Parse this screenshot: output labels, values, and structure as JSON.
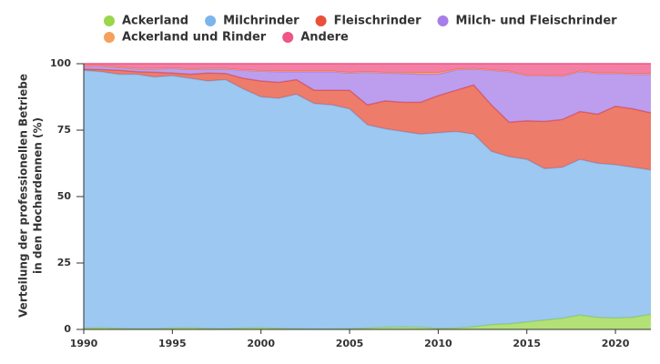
{
  "chart_data": {
    "type": "stacked_area",
    "ylabel": [
      "Verteilung der professionellen Betriebe",
      "in den Hochardennen (%)"
    ],
    "x": [
      1990,
      1991,
      1992,
      1993,
      1994,
      1995,
      1996,
      1997,
      1998,
      1999,
      2000,
      2001,
      2002,
      2003,
      2004,
      2005,
      2006,
      2007,
      2008,
      2009,
      2010,
      2011,
      2012,
      2013,
      2014,
      2015,
      2016,
      2017,
      2018,
      2019,
      2020,
      2021,
      2022
    ],
    "xlim": [
      1990,
      2022
    ],
    "xticks": [
      1990,
      1995,
      2000,
      2005,
      2010,
      2015,
      2020
    ],
    "ylim": [
      0,
      100
    ],
    "yticks": [
      0,
      25,
      50,
      75,
      100
    ],
    "series": [
      {
        "name": "Ackerland",
        "color": "#9bd64b",
        "values": [
          0.5,
          0.6,
          0.4,
          0.3,
          0.3,
          0.5,
          0.6,
          0.4,
          0.3,
          0.5,
          0.6,
          0.4,
          0.3,
          0.2,
          0.2,
          0.3,
          0.5,
          0.8,
          0.9,
          0.8,
          0.4,
          0.5,
          1,
          1.8,
          2.1,
          2.8,
          3.5,
          4.2,
          5.4,
          4.5,
          4.3,
          4.6,
          5.7
        ]
      },
      {
        "name": "Milchrinder",
        "color": "#7cb5ec",
        "values": [
          97,
          96.4,
          95.6,
          95.7,
          94.7,
          95,
          93.9,
          93.1,
          93.7,
          90,
          86.9,
          86.6,
          88.2,
          84.8,
          84.3,
          82.7,
          76.5,
          74.7,
          73.6,
          72.7,
          73.6,
          74,
          72.5,
          65.2,
          62.9,
          61.2,
          57,
          56.8,
          58.6,
          58,
          57.7,
          56.4,
          54.3
        ]
      },
      {
        "name": "Fleischrinder",
        "color": "#e8503a",
        "values": [
          0.5,
          0.8,
          1.5,
          1,
          1.8,
          1,
          1.5,
          3,
          2.3,
          4,
          6,
          6,
          5.5,
          5,
          5.5,
          7,
          7.5,
          10.5,
          11,
          12,
          14,
          15.5,
          18.5,
          17.5,
          13,
          14.5,
          17.8,
          18,
          18,
          18.5,
          22,
          22,
          21.5
        ]
      },
      {
        "name": "Milch- und Fleischrinder",
        "color": "#a77ee8",
        "values": [
          1,
          1.2,
          1,
          1,
          1.2,
          1.7,
          1.8,
          1.5,
          1.7,
          3,
          3.7,
          4,
          3,
          7,
          7,
          6.5,
          12.3,
          10.5,
          10.8,
          10.5,
          8,
          7.7,
          6,
          13,
          19,
          17,
          17.2,
          16.3,
          15,
          15.3,
          12.3,
          13,
          14.5
        ]
      },
      {
        "name": "Ackerland und Rinder",
        "color": "#f4a15d",
        "values": [
          0.2,
          0.2,
          0.2,
          0.2,
          0.2,
          0.2,
          0.2,
          0.2,
          0.2,
          0.2,
          0.2,
          0.2,
          0.2,
          0.2,
          0.2,
          0.2,
          0.2,
          0.2,
          0.4,
          0.6,
          0.6,
          0.2,
          0.2,
          0.2,
          0.2,
          0.2,
          0.2,
          0.2,
          0.2,
          0.2,
          0.2,
          0.2,
          0.2
        ]
      },
      {
        "name": "Andere",
        "color": "#ef5585",
        "values": [
          0.8,
          0.8,
          1.3,
          1.8,
          1.8,
          1.6,
          2,
          1.8,
          1.8,
          2.3,
          2.6,
          2.8,
          2.8,
          2.8,
          2.8,
          3.3,
          3,
          3.3,
          3.3,
          3.4,
          3.4,
          2.1,
          1.8,
          2.3,
          2.8,
          4.3,
          4.3,
          4.5,
          2.8,
          3.5,
          3.5,
          3.8,
          3.8
        ]
      }
    ]
  }
}
